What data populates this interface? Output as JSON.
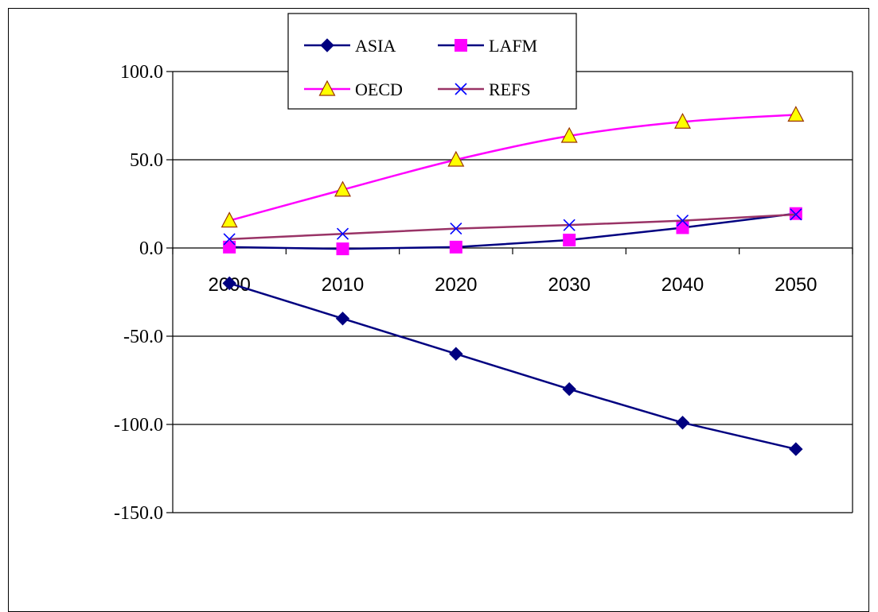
{
  "chart_data": {
    "type": "line",
    "title": "",
    "xlabel": "",
    "ylabel": "",
    "x": [
      2000,
      2010,
      2020,
      2030,
      2040,
      2050
    ],
    "ylim": [
      -150,
      100
    ],
    "yticks": [
      "100.0",
      "50.0",
      "0.0",
      "-50.0",
      "-100.0",
      "-150.0"
    ],
    "grid": "horizontal",
    "legend_position": "top-center",
    "series": [
      {
        "name": "ASIA",
        "color": "#000080",
        "marker": "diamond",
        "smooth": false,
        "values": [
          -20,
          -40,
          -60,
          -80,
          -99,
          -114
        ]
      },
      {
        "name": "LAFM",
        "color": "#000080",
        "marker": "square",
        "marker_color": "#ff00ff",
        "smooth": false,
        "values": [
          0.5,
          -0.5,
          0.5,
          4.5,
          11.5,
          19.5
        ]
      },
      {
        "name": "OECD",
        "color": "#ff00ff",
        "marker": "triangle",
        "marker_color": "#ffff00",
        "smooth": true,
        "values": [
          15.5,
          33,
          50,
          63.5,
          71.5,
          75.5
        ]
      },
      {
        "name": "REFS",
        "color": "#993366",
        "marker": "x",
        "marker_color": "#0000ff",
        "smooth": false,
        "values": [
          5,
          8,
          11,
          13,
          15.5,
          19
        ]
      }
    ]
  }
}
